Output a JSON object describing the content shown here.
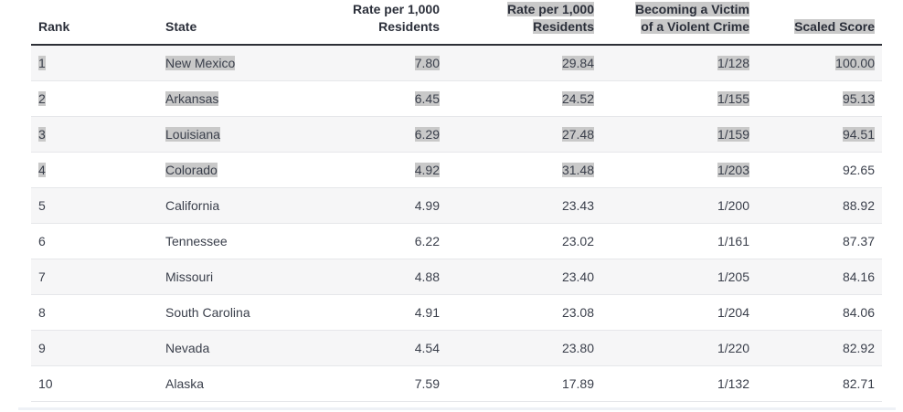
{
  "table": {
    "headers": [
      {
        "line1": "Rank",
        "line2": ""
      },
      {
        "line1": "State",
        "line2": ""
      },
      {
        "line1": "Rate per 1,000",
        "line2": "Residents"
      },
      {
        "line1": "Rate per 1,000",
        "line2": "Residents"
      },
      {
        "line1": "Becoming a Victim",
        "line2": "of a Violent Crime"
      },
      {
        "line1": "Scaled Score",
        "line2": ""
      }
    ],
    "rows": [
      {
        "rank": "1",
        "state": "New Mexico",
        "rate1": "7.80",
        "rate2": "29.84",
        "victim": "1/128",
        "score": "100.00"
      },
      {
        "rank": "2",
        "state": "Arkansas",
        "rate1": "6.45",
        "rate2": "24.52",
        "victim": "1/155",
        "score": "95.13"
      },
      {
        "rank": "3",
        "state": "Louisiana",
        "rate1": "6.29",
        "rate2": "27.48",
        "victim": "1/159",
        "score": "94.51"
      },
      {
        "rank": "4",
        "state": "Colorado",
        "rate1": "4.92",
        "rate2": "31.48",
        "victim": "1/203",
        "score": "92.65"
      },
      {
        "rank": "5",
        "state": "California",
        "rate1": "4.99",
        "rate2": "23.43",
        "victim": "1/200",
        "score": "88.92"
      },
      {
        "rank": "6",
        "state": "Tennessee",
        "rate1": "6.22",
        "rate2": "23.02",
        "victim": "1/161",
        "score": "87.37"
      },
      {
        "rank": "7",
        "state": "Missouri",
        "rate1": "4.88",
        "rate2": "23.40",
        "victim": "1/205",
        "score": "84.16"
      },
      {
        "rank": "8",
        "state": "South Carolina",
        "rate1": "4.91",
        "rate2": "23.08",
        "victim": "1/204",
        "score": "84.06"
      },
      {
        "rank": "9",
        "state": "Nevada",
        "rate1": "4.54",
        "rate2": "23.80",
        "victim": "1/220",
        "score": "82.92"
      },
      {
        "rank": "10",
        "state": "Alaska",
        "rate1": "7.59",
        "rate2": "17.89",
        "victim": "1/132",
        "score": "82.71"
      }
    ]
  }
}
